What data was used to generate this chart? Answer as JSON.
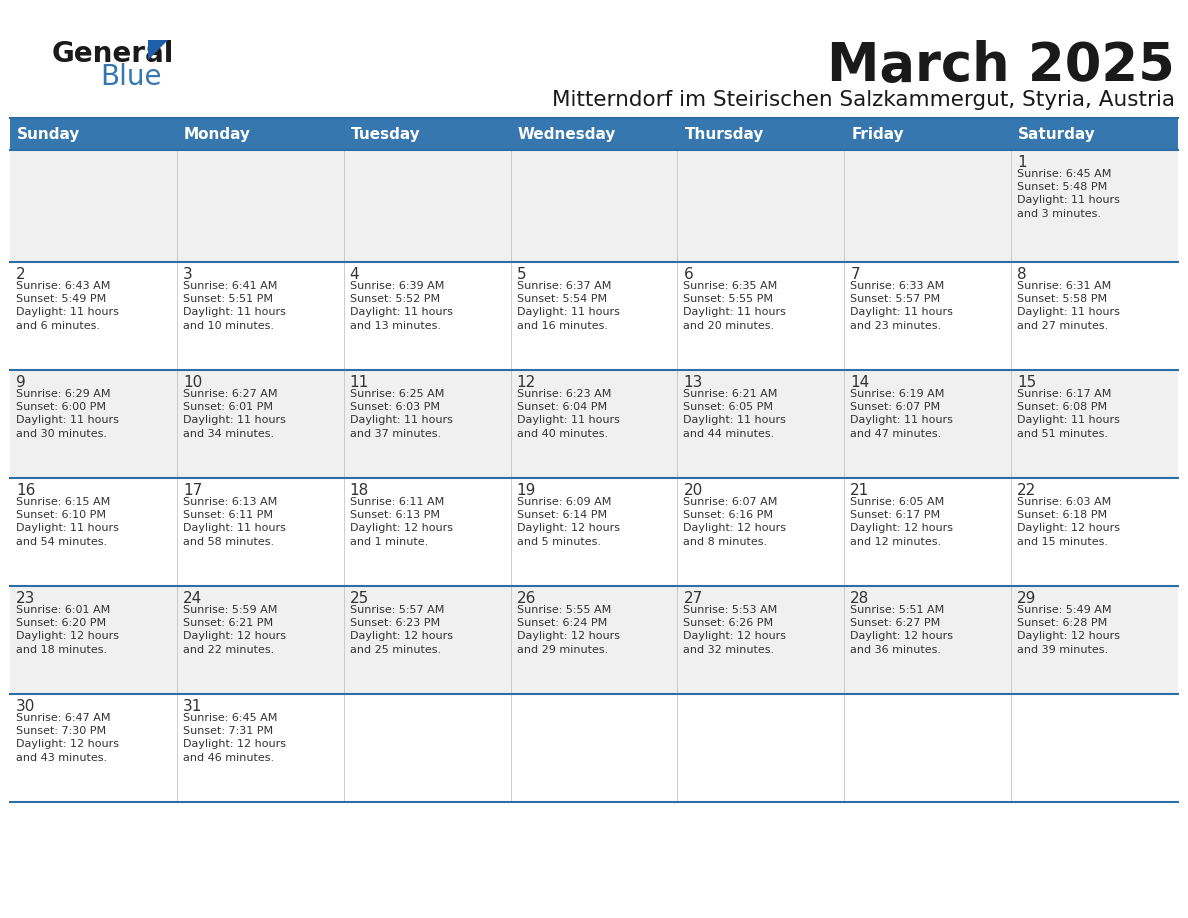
{
  "title": "March 2025",
  "subtitle": "Mitterndorf im Steirischen Salzkammergut, Styria, Austria",
  "header_bg": "#3777B0",
  "header_text": "#FFFFFF",
  "day_names": [
    "Sunday",
    "Monday",
    "Tuesday",
    "Wednesday",
    "Thursday",
    "Friday",
    "Saturday"
  ],
  "row_bg_gray": "#F0F0F0",
  "row_bg_white": "#FFFFFF",
  "grid_line_color": "#2E6EA6",
  "text_color": "#333333",
  "days": [
    {
      "day": 1,
      "col": 6,
      "row": 0,
      "sunrise": "6:45 AM",
      "sunset": "5:48 PM",
      "daylight": "11 hours",
      "daylight2": "and 3 minutes."
    },
    {
      "day": 2,
      "col": 0,
      "row": 1,
      "sunrise": "6:43 AM",
      "sunset": "5:49 PM",
      "daylight": "11 hours",
      "daylight2": "and 6 minutes."
    },
    {
      "day": 3,
      "col": 1,
      "row": 1,
      "sunrise": "6:41 AM",
      "sunset": "5:51 PM",
      "daylight": "11 hours",
      "daylight2": "and 10 minutes."
    },
    {
      "day": 4,
      "col": 2,
      "row": 1,
      "sunrise": "6:39 AM",
      "sunset": "5:52 PM",
      "daylight": "11 hours",
      "daylight2": "and 13 minutes."
    },
    {
      "day": 5,
      "col": 3,
      "row": 1,
      "sunrise": "6:37 AM",
      "sunset": "5:54 PM",
      "daylight": "11 hours",
      "daylight2": "and 16 minutes."
    },
    {
      "day": 6,
      "col": 4,
      "row": 1,
      "sunrise": "6:35 AM",
      "sunset": "5:55 PM",
      "daylight": "11 hours",
      "daylight2": "and 20 minutes."
    },
    {
      "day": 7,
      "col": 5,
      "row": 1,
      "sunrise": "6:33 AM",
      "sunset": "5:57 PM",
      "daylight": "11 hours",
      "daylight2": "and 23 minutes."
    },
    {
      "day": 8,
      "col": 6,
      "row": 1,
      "sunrise": "6:31 AM",
      "sunset": "5:58 PM",
      "daylight": "11 hours",
      "daylight2": "and 27 minutes."
    },
    {
      "day": 9,
      "col": 0,
      "row": 2,
      "sunrise": "6:29 AM",
      "sunset": "6:00 PM",
      "daylight": "11 hours",
      "daylight2": "and 30 minutes."
    },
    {
      "day": 10,
      "col": 1,
      "row": 2,
      "sunrise": "6:27 AM",
      "sunset": "6:01 PM",
      "daylight": "11 hours",
      "daylight2": "and 34 minutes."
    },
    {
      "day": 11,
      "col": 2,
      "row": 2,
      "sunrise": "6:25 AM",
      "sunset": "6:03 PM",
      "daylight": "11 hours",
      "daylight2": "and 37 minutes."
    },
    {
      "day": 12,
      "col": 3,
      "row": 2,
      "sunrise": "6:23 AM",
      "sunset": "6:04 PM",
      "daylight": "11 hours",
      "daylight2": "and 40 minutes."
    },
    {
      "day": 13,
      "col": 4,
      "row": 2,
      "sunrise": "6:21 AM",
      "sunset": "6:05 PM",
      "daylight": "11 hours",
      "daylight2": "and 44 minutes."
    },
    {
      "day": 14,
      "col": 5,
      "row": 2,
      "sunrise": "6:19 AM",
      "sunset": "6:07 PM",
      "daylight": "11 hours",
      "daylight2": "and 47 minutes."
    },
    {
      "day": 15,
      "col": 6,
      "row": 2,
      "sunrise": "6:17 AM",
      "sunset": "6:08 PM",
      "daylight": "11 hours",
      "daylight2": "and 51 minutes."
    },
    {
      "day": 16,
      "col": 0,
      "row": 3,
      "sunrise": "6:15 AM",
      "sunset": "6:10 PM",
      "daylight": "11 hours",
      "daylight2": "and 54 minutes."
    },
    {
      "day": 17,
      "col": 1,
      "row": 3,
      "sunrise": "6:13 AM",
      "sunset": "6:11 PM",
      "daylight": "11 hours",
      "daylight2": "and 58 minutes."
    },
    {
      "day": 18,
      "col": 2,
      "row": 3,
      "sunrise": "6:11 AM",
      "sunset": "6:13 PM",
      "daylight": "12 hours",
      "daylight2": "and 1 minute."
    },
    {
      "day": 19,
      "col": 3,
      "row": 3,
      "sunrise": "6:09 AM",
      "sunset": "6:14 PM",
      "daylight": "12 hours",
      "daylight2": "and 5 minutes."
    },
    {
      "day": 20,
      "col": 4,
      "row": 3,
      "sunrise": "6:07 AM",
      "sunset": "6:16 PM",
      "daylight": "12 hours",
      "daylight2": "and 8 minutes."
    },
    {
      "day": 21,
      "col": 5,
      "row": 3,
      "sunrise": "6:05 AM",
      "sunset": "6:17 PM",
      "daylight": "12 hours",
      "daylight2": "and 12 minutes."
    },
    {
      "day": 22,
      "col": 6,
      "row": 3,
      "sunrise": "6:03 AM",
      "sunset": "6:18 PM",
      "daylight": "12 hours",
      "daylight2": "and 15 minutes."
    },
    {
      "day": 23,
      "col": 0,
      "row": 4,
      "sunrise": "6:01 AM",
      "sunset": "6:20 PM",
      "daylight": "12 hours",
      "daylight2": "and 18 minutes."
    },
    {
      "day": 24,
      "col": 1,
      "row": 4,
      "sunrise": "5:59 AM",
      "sunset": "6:21 PM",
      "daylight": "12 hours",
      "daylight2": "and 22 minutes."
    },
    {
      "day": 25,
      "col": 2,
      "row": 4,
      "sunrise": "5:57 AM",
      "sunset": "6:23 PM",
      "daylight": "12 hours",
      "daylight2": "and 25 minutes."
    },
    {
      "day": 26,
      "col": 3,
      "row": 4,
      "sunrise": "5:55 AM",
      "sunset": "6:24 PM",
      "daylight": "12 hours",
      "daylight2": "and 29 minutes."
    },
    {
      "day": 27,
      "col": 4,
      "row": 4,
      "sunrise": "5:53 AM",
      "sunset": "6:26 PM",
      "daylight": "12 hours",
      "daylight2": "and 32 minutes."
    },
    {
      "day": 28,
      "col": 5,
      "row": 4,
      "sunrise": "5:51 AM",
      "sunset": "6:27 PM",
      "daylight": "12 hours",
      "daylight2": "and 36 minutes."
    },
    {
      "day": 29,
      "col": 6,
      "row": 4,
      "sunrise": "5:49 AM",
      "sunset": "6:28 PM",
      "daylight": "12 hours",
      "daylight2": "and 39 minutes."
    },
    {
      "day": 30,
      "col": 0,
      "row": 5,
      "sunrise": "6:47 AM",
      "sunset": "7:30 PM",
      "daylight": "12 hours",
      "daylight2": "and 43 minutes."
    },
    {
      "day": 31,
      "col": 1,
      "row": 5,
      "sunrise": "6:45 AM",
      "sunset": "7:31 PM",
      "daylight": "12 hours",
      "daylight2": "and 46 minutes."
    }
  ]
}
